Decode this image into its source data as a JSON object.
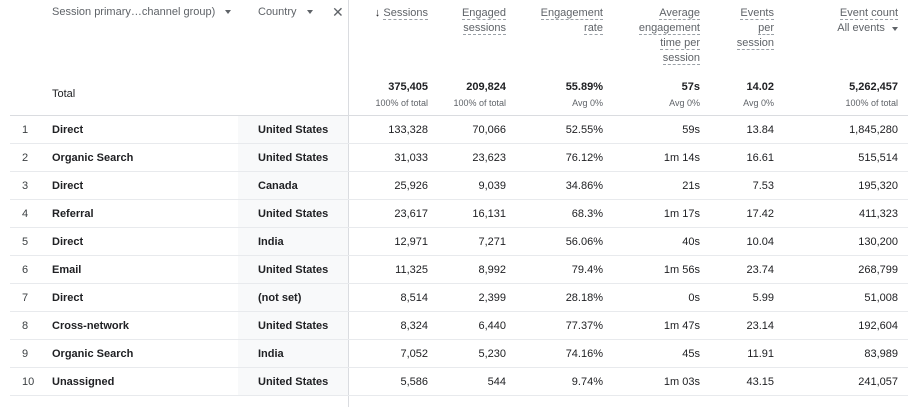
{
  "headers": {
    "dim1": "Session primary…channel group)",
    "dim2": "Country",
    "sessions": "Sessions",
    "engaged_1": "Engaged",
    "engaged_2": "sessions",
    "eng_rate_1": "Engagement",
    "eng_rate_2": "rate",
    "avg_1": "Average",
    "avg_2": "engagement",
    "avg_3": "time per",
    "avg_4": "session",
    "eps_1": "Events",
    "eps_2": "per",
    "eps_3": "session",
    "evc_1": "Event count",
    "evc_2": "All events"
  },
  "total": {
    "label": "Total",
    "sessions": "375,405",
    "sessions_sub": "100% of total",
    "engaged": "209,824",
    "engaged_sub": "100% of total",
    "eng_rate": "55.89%",
    "eng_rate_sub": "Avg 0%",
    "avg_time": "57s",
    "avg_time_sub": "Avg 0%",
    "eps": "14.02",
    "eps_sub": "Avg 0%",
    "evc": "5,262,457",
    "evc_sub": "100% of total"
  },
  "rows": [
    {
      "i": "1",
      "ch": "Direct",
      "co": "United States",
      "s": "133,328",
      "e": "70,066",
      "r": "52.55%",
      "t": "59s",
      "p": "13.84",
      "c": "1,845,280"
    },
    {
      "i": "2",
      "ch": "Organic Search",
      "co": "United States",
      "s": "31,033",
      "e": "23,623",
      "r": "76.12%",
      "t": "1m 14s",
      "p": "16.61",
      "c": "515,514"
    },
    {
      "i": "3",
      "ch": "Direct",
      "co": "Canada",
      "s": "25,926",
      "e": "9,039",
      "r": "34.86%",
      "t": "21s",
      "p": "7.53",
      "c": "195,320"
    },
    {
      "i": "4",
      "ch": "Referral",
      "co": "United States",
      "s": "23,617",
      "e": "16,131",
      "r": "68.3%",
      "t": "1m 17s",
      "p": "17.42",
      "c": "411,323"
    },
    {
      "i": "5",
      "ch": "Direct",
      "co": "India",
      "s": "12,971",
      "e": "7,271",
      "r": "56.06%",
      "t": "40s",
      "p": "10.04",
      "c": "130,200"
    },
    {
      "i": "6",
      "ch": "Email",
      "co": "United States",
      "s": "11,325",
      "e": "8,992",
      "r": "79.4%",
      "t": "1m 56s",
      "p": "23.74",
      "c": "268,799"
    },
    {
      "i": "7",
      "ch": "Direct",
      "co": "(not set)",
      "s": "8,514",
      "e": "2,399",
      "r": "28.18%",
      "t": "0s",
      "p": "5.99",
      "c": "51,008"
    },
    {
      "i": "8",
      "ch": "Cross-network",
      "co": "United States",
      "s": "8,324",
      "e": "6,440",
      "r": "77.37%",
      "t": "1m 47s",
      "p": "23.14",
      "c": "192,604"
    },
    {
      "i": "9",
      "ch": "Organic Search",
      "co": "India",
      "s": "7,052",
      "e": "5,230",
      "r": "74.16%",
      "t": "45s",
      "p": "11.91",
      "c": "83,989"
    },
    {
      "i": "10",
      "ch": "Unassigned",
      "co": "United States",
      "s": "5,586",
      "e": "544",
      "r": "9.74%",
      "t": "1m 03s",
      "p": "43.15",
      "c": "241,057"
    }
  ]
}
